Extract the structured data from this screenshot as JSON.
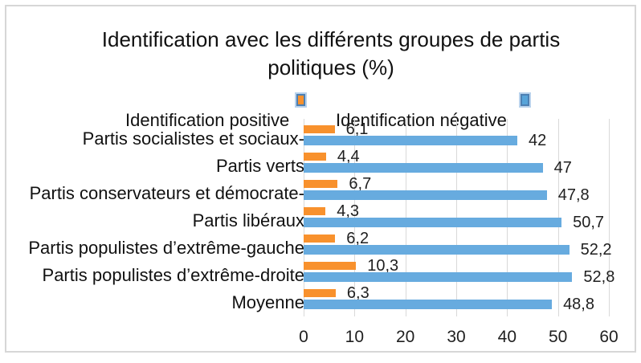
{
  "legend": [
    {
      "label": "Identification positive",
      "color": "#f8912d",
      "marker": "orange-square-selected"
    },
    {
      "label": "Identification négative",
      "color": "#67abdf",
      "marker": "blue-square-selected"
    }
  ],
  "chart_data": {
    "type": "bar",
    "orientation": "horizontal",
    "title": "Identification avec les différents groupes de partis politiques (%)",
    "categories": [
      "Partis socialistes et sociaux-",
      "Partis verts",
      "Partis conservateurs et démocrate-",
      "Partis libéraux",
      "Partis populistes d’extrême-gauche",
      "Partis populistes d’extrême-droite",
      "Moyenne"
    ],
    "series": [
      {
        "name": "Identification positive",
        "color": "#f8912d",
        "values": [
          6.1,
          4.4,
          6.7,
          4.3,
          6.2,
          10.3,
          6.3
        ],
        "data_labels": [
          "6,1",
          "4,4",
          "6,7",
          "4,3",
          "6,2",
          "10,3",
          "6,3"
        ]
      },
      {
        "name": "Identification négative",
        "color": "#67abdf",
        "values": [
          42,
          47,
          47.8,
          50.7,
          52.2,
          52.8,
          48.8
        ],
        "data_labels": [
          "42",
          "47",
          "47,8",
          "50,7",
          "52,2",
          "52,8",
          "48,8"
        ]
      }
    ],
    "xlim": [
      0,
      60
    ],
    "x_ticks": [
      "0",
      "10",
      "20",
      "30",
      "40",
      "50",
      "60"
    ],
    "grid": "vertical",
    "legend_position": "top",
    "grid_color": "#d9d9d9"
  }
}
